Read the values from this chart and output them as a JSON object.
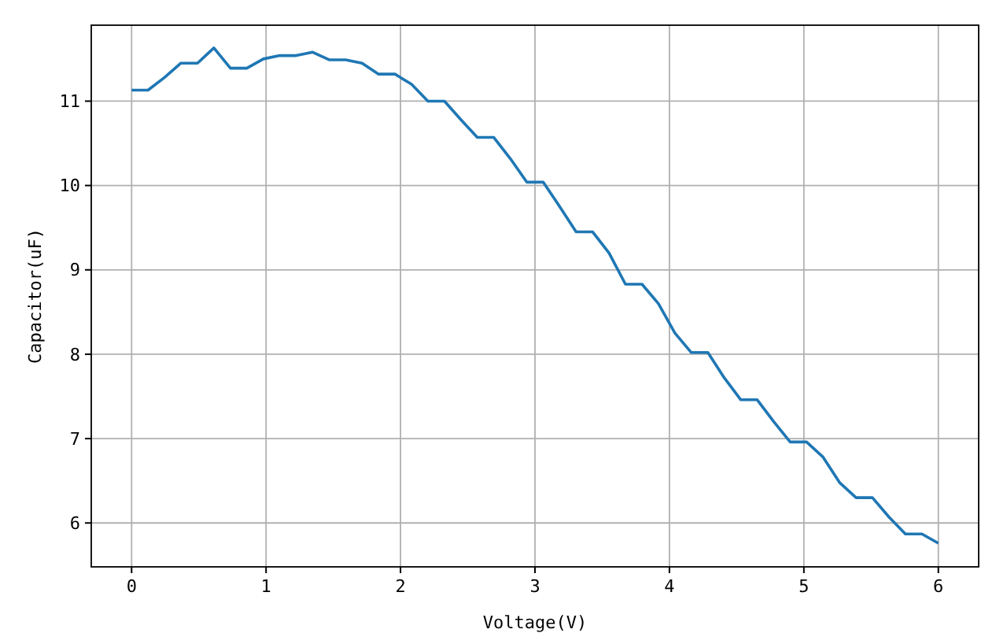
{
  "chart_data": {
    "type": "line",
    "xlabel": "Voltage(V)",
    "ylabel": "Capacitor(uF)",
    "x": [
      0,
      0.122,
      0.245,
      0.367,
      0.49,
      0.612,
      0.735,
      0.857,
      0.98,
      1.102,
      1.224,
      1.347,
      1.469,
      1.592,
      1.714,
      1.837,
      1.959,
      2.082,
      2.204,
      2.327,
      2.449,
      2.571,
      2.694,
      2.816,
      2.939,
      3.061,
      3.184,
      3.306,
      3.429,
      3.551,
      3.673,
      3.796,
      3.918,
      4.041,
      4.163,
      4.286,
      4.408,
      4.531,
      4.653,
      4.776,
      4.898,
      5.02,
      5.143,
      5.265,
      5.388,
      5.51,
      5.633,
      5.755,
      5.878,
      6
    ],
    "series": [
      {
        "color": "#1f77b4",
        "values": [
          11.13,
          11.13,
          11.28,
          11.45,
          11.45,
          11.63,
          11.39,
          11.39,
          11.5,
          11.54,
          11.54,
          11.58,
          11.49,
          11.49,
          11.45,
          11.32,
          11.32,
          11.2,
          11.0,
          11.0,
          10.78,
          10.57,
          10.57,
          10.32,
          10.04,
          10.04,
          9.75,
          9.45,
          9.45,
          9.2,
          8.83,
          8.83,
          8.6,
          8.25,
          8.02,
          8.02,
          7.72,
          7.46,
          7.46,
          7.2,
          6.96,
          6.96,
          6.78,
          6.48,
          6.3,
          6.3,
          6.07,
          5.87,
          5.87,
          5.76
        ]
      }
    ],
    "xlim": [
      -0.3,
      6.3
    ],
    "ylim": [
      5.48,
      11.9
    ],
    "xticks": [
      0,
      1,
      2,
      3,
      4,
      5,
      6
    ],
    "yticks": [
      6,
      7,
      8,
      9,
      10,
      11
    ],
    "grid": true
  }
}
